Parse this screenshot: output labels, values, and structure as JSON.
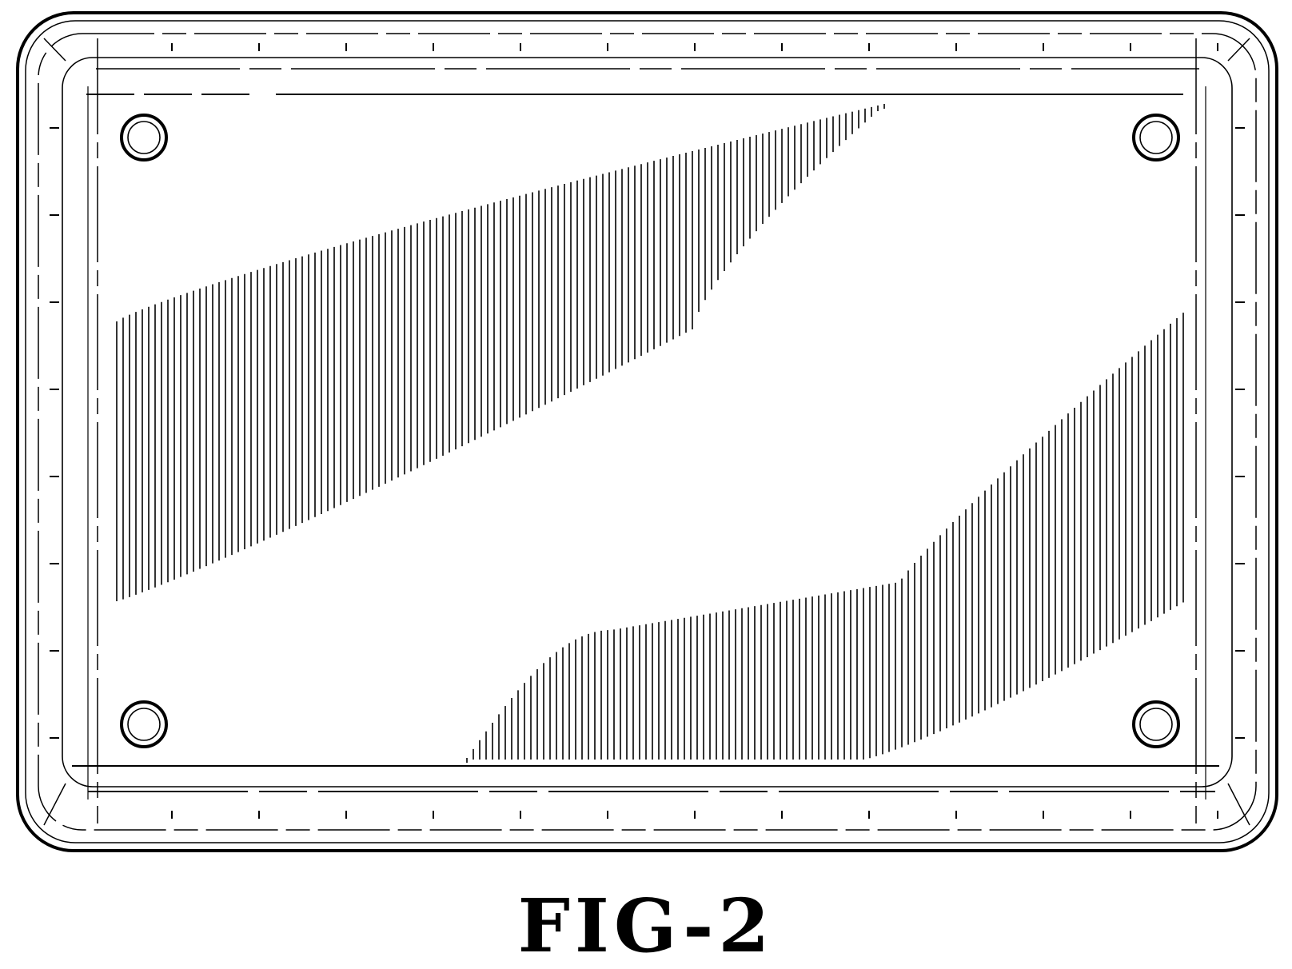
{
  "figure": {
    "caption": "FIG-2",
    "line_color": "#000000",
    "background_color": "#ffffff"
  },
  "parts": {
    "plate": "license-plate-frame",
    "mounting_holes": [
      "top-left",
      "top-right",
      "bottom-left",
      "bottom-right"
    ],
    "shading": [
      "upper-wave-band",
      "lower-wave-band"
    ]
  }
}
